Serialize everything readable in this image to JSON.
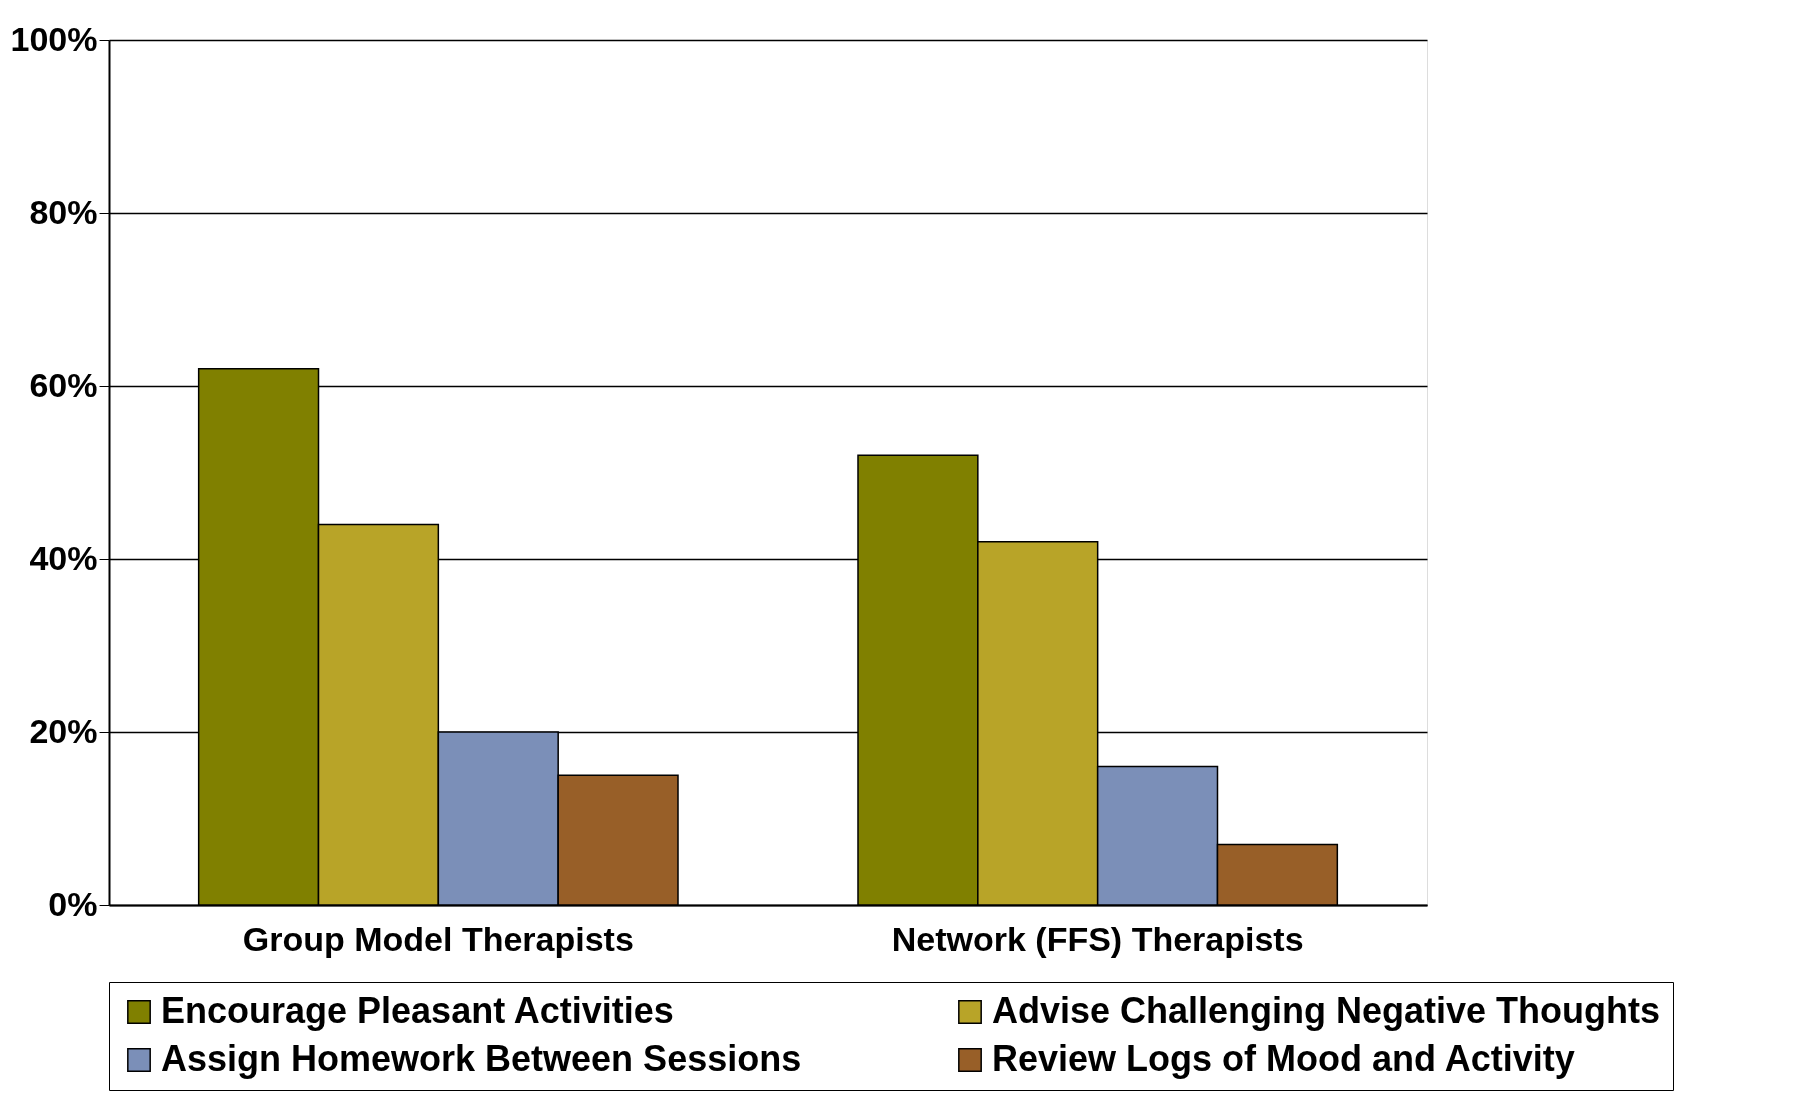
{
  "chart_data": {
    "type": "bar",
    "categories": [
      "Group Model Therapists",
      "Network (FFS) Therapists"
    ],
    "series": [
      {
        "name": "Encourage Pleasant Activities",
        "color": "#808000",
        "values": [
          62,
          52
        ]
      },
      {
        "name": "Advise Challenging Negative Thoughts",
        "color": "#b8a428",
        "values": [
          44,
          42
        ]
      },
      {
        "name": "Assign Homework Between Sessions",
        "color": "#7b8fb8",
        "values": [
          20,
          16
        ]
      },
      {
        "name": "Review Logs of Mood and Activity",
        "color": "#985f28",
        "values": [
          15,
          7
        ]
      }
    ],
    "ylim": [
      0,
      100
    ],
    "yticks": [
      {
        "value": 0,
        "label": "0%"
      },
      {
        "value": 20,
        "label": "20%"
      },
      {
        "value": 40,
        "label": "40%"
      },
      {
        "value": 60,
        "label": "60%"
      },
      {
        "value": 80,
        "label": "80%"
      },
      {
        "value": 100,
        "label": "100%"
      }
    ],
    "grid": "y",
    "legend": "bottom"
  }
}
